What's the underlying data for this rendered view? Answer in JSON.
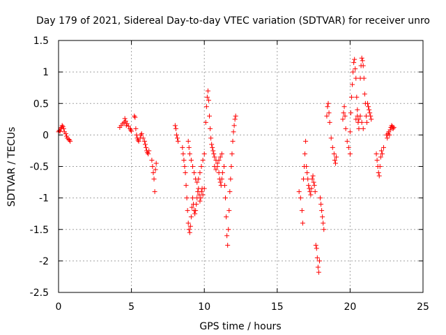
{
  "chart_data": {
    "type": "scatter",
    "title": "Day 179 of 2021, Sidereal Day-to-day VTEC variation (SDTVAR) for receiver unro",
    "xlabel": "GPS time / hours",
    "ylabel": "SDTVAR / TECUs",
    "xlim": [
      0,
      25
    ],
    "ylim": [
      -2.5,
      1.5
    ],
    "xticks": [
      0,
      5,
      10,
      15,
      20,
      25
    ],
    "xtick_labels": [
      "0",
      "5",
      "10",
      "15",
      "20",
      "25"
    ],
    "yticks": [
      -2.5,
      -2,
      -1.5,
      -1,
      -0.5,
      0,
      0.5,
      1,
      1.5
    ],
    "ytick_labels": [
      "-2.5",
      "-2",
      "-1.5",
      "-1",
      "-0.5",
      "0",
      "0.5",
      "1",
      "1.5"
    ],
    "grid": true,
    "marker": "+",
    "marker_color": "#ff0000",
    "series": [
      {
        "name": "SDTVAR",
        "points": [
          [
            0.0,
            0.05
          ],
          [
            0.05,
            0.07
          ],
          [
            0.1,
            0.06
          ],
          [
            0.15,
            0.1
          ],
          [
            0.2,
            0.12
          ],
          [
            0.25,
            0.15
          ],
          [
            0.3,
            0.13
          ],
          [
            0.35,
            0.1
          ],
          [
            0.4,
            0.05
          ],
          [
            0.5,
            0.02
          ],
          [
            0.55,
            -0.02
          ],
          [
            0.6,
            -0.05
          ],
          [
            0.7,
            -0.07
          ],
          [
            0.75,
            -0.08
          ],
          [
            0.8,
            -0.1
          ],
          [
            4.2,
            0.12
          ],
          [
            4.3,
            0.15
          ],
          [
            4.4,
            0.18
          ],
          [
            4.5,
            0.2
          ],
          [
            4.55,
            0.26
          ],
          [
            4.6,
            0.22
          ],
          [
            4.65,
            0.15
          ],
          [
            4.7,
            0.18
          ],
          [
            4.8,
            0.14
          ],
          [
            4.9,
            0.1
          ],
          [
            4.95,
            0.08
          ],
          [
            5.0,
            0.06
          ],
          [
            5.2,
            0.3
          ],
          [
            5.25,
            0.28
          ],
          [
            5.3,
            0.1
          ],
          [
            5.35,
            0.0
          ],
          [
            5.4,
            -0.05
          ],
          [
            5.45,
            -0.08
          ],
          [
            5.5,
            -0.1
          ],
          [
            5.6,
            -0.05
          ],
          [
            5.65,
            0.0
          ],
          [
            5.7,
            0.02
          ],
          [
            5.8,
            -0.05
          ],
          [
            5.9,
            -0.1
          ],
          [
            5.95,
            -0.15
          ],
          [
            6.0,
            -0.2
          ],
          [
            6.05,
            -0.25
          ],
          [
            6.1,
            -0.28
          ],
          [
            6.15,
            -0.3
          ],
          [
            6.2,
            -0.25
          ],
          [
            6.4,
            -0.4
          ],
          [
            6.45,
            -0.5
          ],
          [
            6.5,
            -0.6
          ],
          [
            6.55,
            -0.7
          ],
          [
            6.6,
            -0.9
          ],
          [
            6.65,
            -0.55
          ],
          [
            6.7,
            -0.45
          ],
          [
            8.0,
            0.15
          ],
          [
            8.05,
            0.1
          ],
          [
            8.1,
            0.0
          ],
          [
            8.15,
            -0.05
          ],
          [
            8.2,
            -0.1
          ],
          [
            8.5,
            -0.2
          ],
          [
            8.55,
            -0.3
          ],
          [
            8.6,
            -0.4
          ],
          [
            8.65,
            -0.5
          ],
          [
            8.7,
            -0.6
          ],
          [
            8.75,
            -0.8
          ],
          [
            8.8,
            -1.0
          ],
          [
            8.85,
            -1.2
          ],
          [
            8.9,
            -1.4
          ],
          [
            8.95,
            -1.5
          ],
          [
            9.0,
            -1.55
          ],
          [
            9.05,
            -1.45
          ],
          [
            9.1,
            -1.3
          ],
          [
            9.15,
            -1.15
          ],
          [
            9.2,
            -1.0
          ],
          [
            9.25,
            -1.1
          ],
          [
            9.3,
            -1.2
          ],
          [
            9.35,
            -1.25
          ],
          [
            9.4,
            -1.2
          ],
          [
            9.45,
            -1.1
          ],
          [
            9.5,
            -1.0
          ],
          [
            9.55,
            -0.9
          ],
          [
            9.6,
            -0.85
          ],
          [
            9.65,
            -0.95
          ],
          [
            9.7,
            -1.05
          ],
          [
            9.75,
            -1.0
          ],
          [
            9.8,
            -0.9
          ],
          [
            9.85,
            -0.85
          ],
          [
            9.9,
            -0.95
          ],
          [
            10.0,
            -0.85
          ],
          [
            8.9,
            -0.1
          ],
          [
            8.95,
            -0.2
          ],
          [
            9.0,
            -0.3
          ],
          [
            9.1,
            -0.4
          ],
          [
            9.2,
            -0.5
          ],
          [
            9.3,
            -0.6
          ],
          [
            9.4,
            -0.7
          ],
          [
            9.5,
            -0.75
          ],
          [
            9.6,
            -0.7
          ],
          [
            9.7,
            -0.6
          ],
          [
            9.8,
            -0.5
          ],
          [
            9.9,
            -0.4
          ],
          [
            10.0,
            -0.3
          ],
          [
            10.1,
            0.2
          ],
          [
            10.15,
            0.45
          ],
          [
            10.2,
            0.6
          ],
          [
            10.25,
            0.7
          ],
          [
            10.3,
            0.55
          ],
          [
            10.35,
            0.3
          ],
          [
            10.4,
            0.1
          ],
          [
            10.45,
            -0.05
          ],
          [
            10.5,
            -0.15
          ],
          [
            10.55,
            -0.2
          ],
          [
            10.6,
            -0.25
          ],
          [
            10.65,
            -0.3
          ],
          [
            10.7,
            -0.35
          ],
          [
            10.8,
            -0.4
          ],
          [
            10.9,
            -0.5
          ],
          [
            11.0,
            -0.6
          ],
          [
            11.05,
            -0.7
          ],
          [
            11.1,
            -0.75
          ],
          [
            11.15,
            -0.8
          ],
          [
            11.2,
            -0.7
          ],
          [
            11.25,
            -0.6
          ],
          [
            10.7,
            -0.5
          ],
          [
            10.8,
            -0.55
          ],
          [
            10.9,
            -0.45
          ],
          [
            11.0,
            -0.4
          ],
          [
            11.1,
            -0.35
          ],
          [
            11.2,
            -0.3
          ],
          [
            11.35,
            -0.5
          ],
          [
            11.4,
            -0.8
          ],
          [
            11.45,
            -1.0
          ],
          [
            11.5,
            -1.3
          ],
          [
            11.55,
            -1.6
          ],
          [
            11.6,
            -1.75
          ],
          [
            11.65,
            -1.5
          ],
          [
            11.7,
            -1.2
          ],
          [
            11.75,
            -0.9
          ],
          [
            11.8,
            -0.7
          ],
          [
            11.85,
            -0.5
          ],
          [
            11.9,
            -0.3
          ],
          [
            11.95,
            -0.1
          ],
          [
            12.0,
            0.05
          ],
          [
            12.05,
            0.15
          ],
          [
            12.1,
            0.25
          ],
          [
            12.15,
            0.3
          ],
          [
            16.5,
            -0.9
          ],
          [
            16.6,
            -1.0
          ],
          [
            16.7,
            -1.2
          ],
          [
            16.75,
            -1.4
          ],
          [
            16.8,
            -0.7
          ],
          [
            16.85,
            -0.5
          ],
          [
            16.9,
            -0.3
          ],
          [
            16.95,
            -0.1
          ],
          [
            17.0,
            -0.5
          ],
          [
            17.05,
            -0.6
          ],
          [
            17.1,
            -0.7
          ],
          [
            17.15,
            -0.8
          ],
          [
            17.2,
            -0.85
          ],
          [
            17.25,
            -0.9
          ],
          [
            17.3,
            -0.95
          ],
          [
            17.35,
            -0.85
          ],
          [
            17.4,
            -0.7
          ],
          [
            17.45,
            -0.65
          ],
          [
            17.5,
            -0.75
          ],
          [
            17.55,
            -0.8
          ],
          [
            17.6,
            -0.9
          ],
          [
            17.65,
            -1.75
          ],
          [
            17.7,
            -1.8
          ],
          [
            17.75,
            -1.95
          ],
          [
            17.8,
            -2.1
          ],
          [
            17.85,
            -2.18
          ],
          [
            17.9,
            -2.0
          ],
          [
            17.95,
            -1.0
          ],
          [
            18.0,
            -1.1
          ],
          [
            18.05,
            -1.2
          ],
          [
            18.1,
            -1.3
          ],
          [
            18.15,
            -1.4
          ],
          [
            18.2,
            -1.5
          ],
          [
            18.4,
            0.3
          ],
          [
            18.45,
            0.45
          ],
          [
            18.5,
            0.5
          ],
          [
            18.55,
            0.35
          ],
          [
            18.6,
            0.2
          ],
          [
            18.7,
            -0.05
          ],
          [
            18.8,
            -0.2
          ],
          [
            18.9,
            -0.3
          ],
          [
            18.95,
            -0.4
          ],
          [
            19.0,
            -0.45
          ],
          [
            19.05,
            -0.35
          ],
          [
            19.5,
            0.25
          ],
          [
            19.55,
            0.35
          ],
          [
            19.6,
            0.45
          ],
          [
            19.65,
            0.3
          ],
          [
            19.7,
            0.1
          ],
          [
            19.8,
            -0.1
          ],
          [
            19.9,
            -0.2
          ],
          [
            20.0,
            -0.3
          ],
          [
            20.0,
            0.05
          ],
          [
            20.05,
            0.35
          ],
          [
            20.1,
            0.6
          ],
          [
            20.15,
            0.8
          ],
          [
            20.2,
            1.0
          ],
          [
            20.25,
            1.15
          ],
          [
            20.3,
            1.2
          ],
          [
            20.35,
            1.05
          ],
          [
            20.4,
            0.9
          ],
          [
            20.45,
            0.6
          ],
          [
            20.5,
            0.4
          ],
          [
            20.55,
            0.2
          ],
          [
            20.6,
            0.1
          ],
          [
            20.7,
            0.9
          ],
          [
            20.75,
            1.1
          ],
          [
            20.8,
            1.22
          ],
          [
            20.85,
            1.18
          ],
          [
            20.9,
            1.1
          ],
          [
            20.95,
            0.9
          ],
          [
            21.0,
            0.65
          ],
          [
            21.05,
            0.5
          ],
          [
            21.1,
            0.3
          ],
          [
            21.15,
            0.2
          ],
          [
            20.4,
            0.25
          ],
          [
            20.5,
            0.3
          ],
          [
            20.6,
            0.25
          ],
          [
            20.7,
            0.3
          ],
          [
            20.8,
            0.2
          ],
          [
            20.9,
            0.1
          ],
          [
            21.2,
            0.5
          ],
          [
            21.25,
            0.45
          ],
          [
            21.3,
            0.4
          ],
          [
            21.35,
            0.35
          ],
          [
            21.4,
            0.3
          ],
          [
            21.45,
            0.25
          ],
          [
            21.8,
            -0.3
          ],
          [
            21.85,
            -0.4
          ],
          [
            21.9,
            -0.5
          ],
          [
            21.95,
            -0.6
          ],
          [
            22.0,
            -0.65
          ],
          [
            22.05,
            -0.5
          ],
          [
            22.1,
            -0.35
          ],
          [
            22.15,
            -0.25
          ],
          [
            22.2,
            -0.3
          ],
          [
            22.3,
            -0.2
          ],
          [
            22.5,
            0.0
          ],
          [
            22.55,
            -0.05
          ],
          [
            22.6,
            0.02
          ],
          [
            22.65,
            0.05
          ],
          [
            22.7,
            0.0
          ],
          [
            22.75,
            0.08
          ],
          [
            22.8,
            0.12
          ],
          [
            22.85,
            0.15
          ],
          [
            22.9,
            0.13
          ],
          [
            22.95,
            0.1
          ],
          [
            23.0,
            0.12
          ]
        ]
      }
    ]
  }
}
